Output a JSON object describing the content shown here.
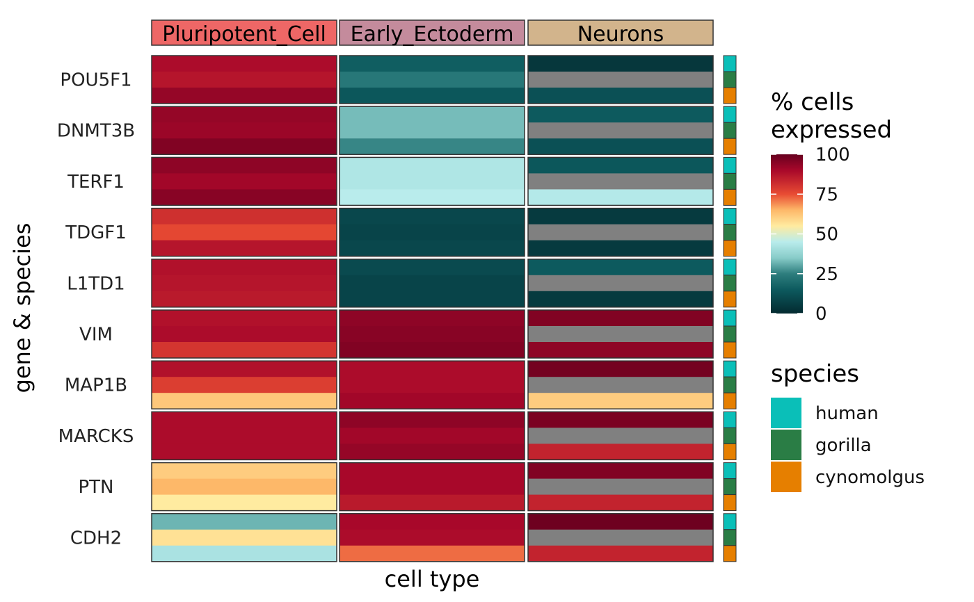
{
  "chart_data": {
    "type": "heatmap",
    "xlabel": "cell type",
    "ylabel": "gene & species",
    "cell_types": [
      "Pluripotent_Cell",
      "Early_Ectoderm",
      "Neurons"
    ],
    "facet_colors": [
      "#EE6766",
      "#C48B9C",
      "#D2B48C"
    ],
    "genes": [
      "POU5F1",
      "DNMT3B",
      "TERF1",
      "TDGF1",
      "L1TD1",
      "VIM",
      "MAP1B",
      "MARCKS",
      "PTN",
      "CDH2"
    ],
    "species": [
      "human",
      "gorilla",
      "cynomolgus"
    ],
    "species_colors": [
      "#0ABFB8",
      "#2A7D45",
      "#E67F00"
    ],
    "missing_color": "#808080",
    "values": {
      "POU5F1": [
        [
          89,
          87,
          93
        ],
        [
          16,
          23,
          14
        ],
        [
          4,
          null,
          12
        ]
      ],
      "DNMT3B": [
        [
          93,
          92,
          96
        ],
        [
          33,
          33,
          26
        ],
        [
          15,
          null,
          12
        ]
      ],
      "TERF1": [
        [
          94,
          91,
          95
        ],
        [
          43,
          43,
          45
        ],
        [
          14,
          null,
          44
        ]
      ],
      "TDGF1": [
        [
          81,
          76,
          87
        ],
        [
          9,
          8,
          9
        ],
        [
          5,
          null,
          5
        ]
      ],
      "L1TD1": [
        [
          88,
          87,
          86
        ],
        [
          10,
          8,
          8
        ],
        [
          15,
          null,
          5
        ]
      ],
      "VIM": [
        [
          88,
          89,
          80
        ],
        [
          94,
          95,
          96
        ],
        [
          96,
          null,
          94
        ]
      ],
      "MAP1B": [
        [
          88,
          78,
          62
        ],
        [
          89,
          89,
          91
        ],
        [
          98,
          null,
          61
        ]
      ],
      "MARCKS": [
        [
          89,
          89,
          89
        ],
        [
          94,
          91,
          93
        ],
        [
          97,
          null,
          84
        ]
      ],
      "PTN": [
        [
          61,
          65,
          55
        ],
        [
          90,
          90,
          86
        ],
        [
          96,
          null,
          84
        ]
      ],
      "CDH2": [
        [
          32,
          57,
          42
        ],
        [
          90,
          89,
          72
        ],
        [
          99,
          null,
          84
        ]
      ]
    },
    "colorbar": {
      "title_lines": [
        "% cells",
        "expressed"
      ],
      "ticks": [
        100,
        75,
        50,
        25,
        0
      ],
      "range": [
        0,
        100
      ],
      "stops": [
        [
          0,
          "#032A30"
        ],
        [
          15,
          "#0D5A5E"
        ],
        [
          25,
          "#2E7E7E"
        ],
        [
          35,
          "#88CCC9"
        ],
        [
          45,
          "#B9ECEC"
        ],
        [
          55,
          "#FFEBA0"
        ],
        [
          65,
          "#FDB869"
        ],
        [
          75,
          "#E84B33"
        ],
        [
          90,
          "#A8082A"
        ],
        [
          100,
          "#67001F"
        ]
      ]
    },
    "species_legend_title": "species"
  }
}
